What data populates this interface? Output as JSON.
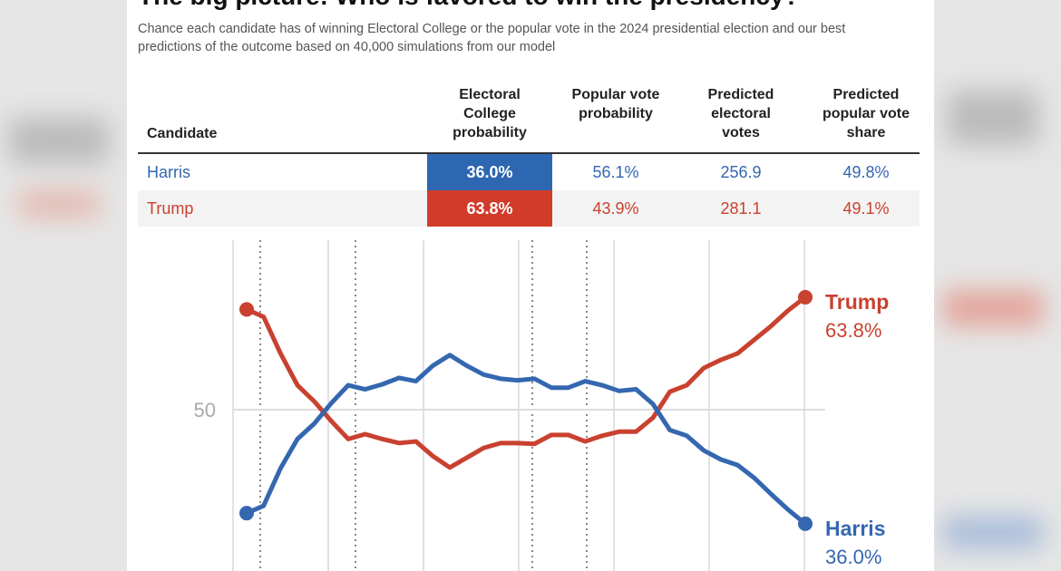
{
  "header": {
    "title": "The big picture: Who is favored to win the presidency?",
    "subtitle": "Chance each candidate has of winning Electoral College or the popular vote in the 2024 presidential election and our best predictions of the outcome based on 40,000 simulations from our model"
  },
  "table": {
    "headers": [
      "Candidate",
      "Electoral College probability",
      "Popular vote probability",
      "Predicted electoral votes",
      "Predicted popular vote share"
    ],
    "rows": [
      [
        "Harris",
        "36.0%",
        "56.1%",
        "256.9",
        "49.8%"
      ],
      [
        "Trump",
        "63.8%",
        "43.9%",
        "281.1",
        "49.1%"
      ]
    ]
  },
  "chart_data": {
    "type": "line",
    "categories": [
      null,
      null,
      null,
      null,
      null,
      null,
      null,
      null,
      null,
      null,
      null,
      null,
      null,
      null,
      null,
      null,
      null,
      null,
      null,
      null,
      null,
      null,
      null,
      null,
      null,
      null,
      null,
      null,
      null,
      null,
      null,
      null,
      null,
      null
    ],
    "series": [
      {
        "name": "Trump",
        "color": "#c9412f",
        "values": [
          62.3,
          61.4,
          56.9,
          53.0,
          51.0,
          48.6,
          46.4,
          47.0,
          46.4,
          45.9,
          46.1,
          44.3,
          42.9,
          44.1,
          45.3,
          45.9,
          45.9,
          45.8,
          46.9,
          46.9,
          46.1,
          46.8,
          47.3,
          47.3,
          49.0,
          52.2,
          53.0,
          55.1,
          56.1,
          56.9,
          58.6,
          60.3,
          62.2,
          63.8
        ],
        "value_labels": [
          null,
          null,
          null,
          null,
          null,
          null,
          null,
          null,
          null,
          null,
          null,
          null,
          null,
          null,
          null,
          null,
          null,
          null,
          null,
          null,
          null,
          null,
          null,
          null,
          null,
          null,
          null,
          null,
          null,
          null,
          null,
          null,
          null,
          "63.8%"
        ]
      },
      {
        "name": "Harris",
        "color": "#3467b0",
        "values": [
          37.3,
          38.2,
          42.8,
          46.4,
          48.3,
          50.8,
          53.0,
          52.5,
          53.1,
          53.9,
          53.5,
          55.4,
          56.7,
          55.4,
          54.3,
          53.8,
          53.6,
          53.8,
          52.7,
          52.7,
          53.5,
          53.0,
          52.3,
          52.5,
          50.7,
          47.5,
          46.8,
          45.0,
          43.9,
          43.2,
          41.6,
          39.6,
          37.7,
          36.0
        ],
        "value_labels": [
          null,
          null,
          null,
          null,
          null,
          null,
          null,
          null,
          null,
          null,
          null,
          null,
          null,
          null,
          null,
          null,
          null,
          null,
          null,
          null,
          null,
          null,
          null,
          null,
          null,
          null,
          null,
          null,
          null,
          null,
          null,
          null,
          null,
          "36.0%"
        ]
      }
    ],
    "ylim": [
      30.2,
      70.8
    ],
    "yticks": [
      50
    ],
    "grid": true
  }
}
